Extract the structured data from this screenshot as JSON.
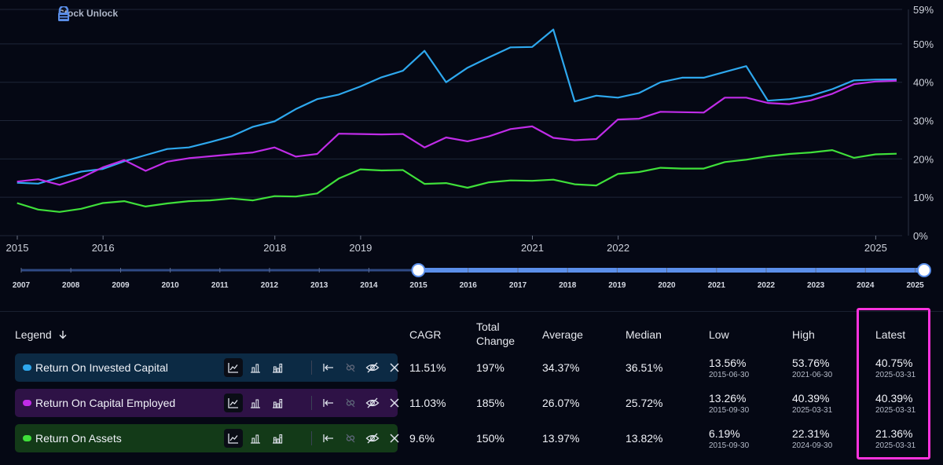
{
  "brand": {
    "name": "Stock Unlock"
  },
  "colors": {
    "roic": "#2ea8ee",
    "roce": "#c02ce8",
    "roa": "#3fe03a",
    "grid": "#1e2638",
    "slider_active": "#5b8fea",
    "highlight": "#ff33dd"
  },
  "chart_data": {
    "type": "line",
    "x_range": [
      "2015-01-01",
      "2025-03-31"
    ],
    "ylim": [
      0,
      59
    ],
    "y_ticks": [
      0,
      10,
      20,
      30,
      40,
      50,
      59
    ],
    "y_tick_labels": [
      "0%",
      "10%",
      "20%",
      "30%",
      "40%",
      "50%",
      "59%"
    ],
    "x_ticks": [
      "2015-01-01",
      "2016-01-01",
      "2018-01-01",
      "2019-01-01",
      "2021-01-01",
      "2022-01-01",
      "2025-01-01"
    ],
    "x_tick_labels": [
      "2015",
      "2016",
      "2018",
      "2019",
      "2021",
      "2022",
      "2025"
    ],
    "grid": true,
    "dates": [
      "2014-12-31",
      "2015-03-31",
      "2015-06-30",
      "2015-09-30",
      "2015-12-31",
      "2016-03-31",
      "2016-06-30",
      "2016-09-30",
      "2016-12-31",
      "2017-03-31",
      "2017-06-30",
      "2017-09-30",
      "2017-12-31",
      "2018-03-31",
      "2018-06-30",
      "2018-09-30",
      "2018-12-31",
      "2019-03-31",
      "2019-06-30",
      "2019-09-30",
      "2019-12-31",
      "2020-03-31",
      "2020-06-30",
      "2020-09-30",
      "2020-12-31",
      "2021-03-31",
      "2021-06-30",
      "2021-09-30",
      "2021-12-31",
      "2022-03-31",
      "2022-06-30",
      "2022-09-30",
      "2022-12-31",
      "2023-03-31",
      "2023-06-30",
      "2023-09-30",
      "2023-12-31",
      "2024-03-31",
      "2024-06-30",
      "2024-09-30",
      "2024-12-31",
      "2025-03-31"
    ],
    "series": [
      {
        "name": "Return On Invested Capital",
        "color": "#2ea8ee",
        "values": [
          13.8,
          13.56,
          15.2,
          16.7,
          17.4,
          19.4,
          21.0,
          22.6,
          23.0,
          24.4,
          25.9,
          28.4,
          29.8,
          33.0,
          35.6,
          36.8,
          38.9,
          41.3,
          43.0,
          48.2,
          40.0,
          43.8,
          46.5,
          49.1,
          49.2,
          53.76,
          35.0,
          36.5,
          36.0,
          37.2,
          40.0,
          41.2,
          41.2,
          42.7,
          44.2,
          35.2,
          35.6,
          36.5,
          38.2,
          40.5,
          40.7,
          40.75
        ]
      },
      {
        "name": "Return On Capital Employed",
        "color": "#c02ce8",
        "values": [
          14.1,
          14.7,
          13.26,
          15.1,
          17.8,
          19.7,
          16.9,
          19.3,
          20.2,
          20.7,
          21.2,
          21.7,
          23.0,
          20.6,
          21.3,
          26.6,
          26.5,
          26.4,
          26.5,
          23.0,
          25.6,
          24.6,
          25.9,
          27.8,
          28.5,
          25.5,
          24.9,
          25.2,
          30.3,
          30.5,
          32.3,
          32.2,
          32.1,
          36.0,
          36.0,
          34.6,
          34.3,
          35.3,
          37.0,
          39.5,
          40.2,
          40.39
        ]
      },
      {
        "name": "Return On Assets",
        "color": "#3fe03a",
        "values": [
          8.5,
          6.8,
          6.19,
          7.0,
          8.5,
          9.0,
          7.6,
          8.4,
          9.0,
          9.2,
          9.7,
          9.2,
          10.3,
          10.2,
          11.0,
          14.9,
          17.3,
          17.0,
          17.1,
          13.5,
          13.7,
          12.5,
          13.9,
          14.4,
          14.3,
          14.6,
          13.4,
          13.1,
          16.1,
          16.6,
          17.7,
          17.5,
          17.5,
          19.2,
          19.8,
          20.7,
          21.3,
          21.7,
          22.31,
          20.3,
          21.2,
          21.36
        ]
      }
    ]
  },
  "slider": {
    "labels_left": [
      "2007",
      "2008",
      "2009",
      "2010",
      "2011",
      "2012",
      "2013",
      "2014"
    ],
    "labels_right": [
      "2015",
      "2016",
      "2017",
      "2018",
      "2019",
      "2020",
      "2021",
      "2022",
      "2023",
      "2024",
      "2025"
    ],
    "range_start": "2014-12-31",
    "range_end": "2025-03-31"
  },
  "table": {
    "headers": {
      "legend": "Legend",
      "cagr": "CAGR",
      "total_change_1": "Total",
      "total_change_2": "Change",
      "average": "Average",
      "median": "Median",
      "low": "Low",
      "high": "High",
      "latest": "Latest"
    },
    "sort_icon": "arrow-down-icon",
    "rows": [
      {
        "name": "Return On Invested Capital",
        "cagr": "11.51%",
        "total_change": "197%",
        "average": "34.37%",
        "median": "36.51%",
        "low": "13.56%",
        "low_date": "2015-06-30",
        "high": "53.76%",
        "high_date": "2021-06-30",
        "latest": "40.75%",
        "latest_date": "2025-03-31",
        "bg": "#0c2a44",
        "color": "#2ea8ee"
      },
      {
        "name": "Return On Capital Employed",
        "cagr": "11.03%",
        "total_change": "185%",
        "average": "26.07%",
        "median": "25.72%",
        "low": "13.26%",
        "low_date": "2015-09-30",
        "high": "40.39%",
        "high_date": "2025-03-31",
        "latest": "40.39%",
        "latest_date": "2025-03-31",
        "bg": "#2e1246",
        "color": "#c02ce8"
      },
      {
        "name": "Return On Assets",
        "cagr": "9.6%",
        "total_change": "150%",
        "average": "13.97%",
        "median": "13.82%",
        "low": "6.19%",
        "low_date": "2015-09-30",
        "high": "22.31%",
        "high_date": "2024-09-30",
        "latest": "21.36%",
        "latest_date": "2025-03-31",
        "bg": "#133a18",
        "color": "#3fe03a"
      }
    ]
  }
}
